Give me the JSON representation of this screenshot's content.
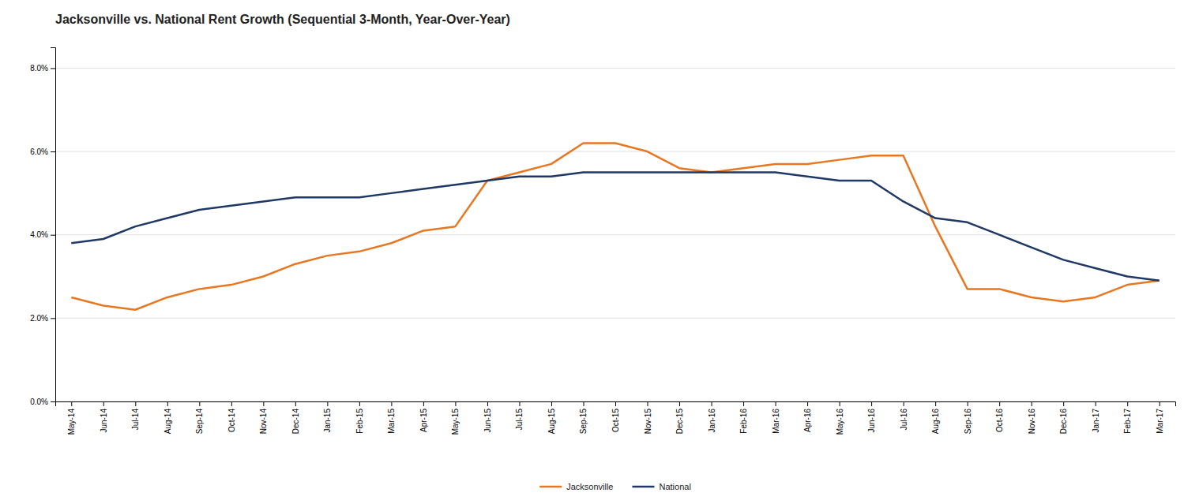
{
  "chart_data": {
    "type": "line",
    "title": "Jacksonville vs. National Rent Growth (Sequential 3-Month, Year-Over-Year)",
    "categories": [
      "May-14",
      "Jun-14",
      "Jul-14",
      "Aug-14",
      "Sep-14",
      "Oct-14",
      "Nov-14",
      "Dec-14",
      "Jan-15",
      "Feb-15",
      "Mar-15",
      "Apr-15",
      "May-15",
      "Jun-15",
      "Jul-15",
      "Aug-15",
      "Sep-15",
      "Oct-15",
      "Nov-15",
      "Dec-15",
      "Jan-16",
      "Feb-16",
      "Mar-16",
      "Apr-16",
      "May-16",
      "Jun-16",
      "Jul-16",
      "Aug-16",
      "Sep-16",
      "Oct-16",
      "Nov-16",
      "Dec-16",
      "Jan-17",
      "Feb-17",
      "Mar-17"
    ],
    "series": [
      {
        "name": "Jacksonville",
        "color": "#E87722",
        "values": [
          0.025,
          0.023,
          0.022,
          0.025,
          0.027,
          0.028,
          0.03,
          0.033,
          0.035,
          0.036,
          0.038,
          0.041,
          0.042,
          0.053,
          0.055,
          0.057,
          0.062,
          0.062,
          0.06,
          0.056,
          0.055,
          0.056,
          0.057,
          0.057,
          0.058,
          0.059,
          0.059,
          0.042,
          0.027,
          0.027,
          0.025,
          0.024,
          0.025,
          0.028,
          0.029
        ]
      },
      {
        "name": "National",
        "color": "#1F3864",
        "values": [
          0.038,
          0.039,
          0.042,
          0.044,
          0.046,
          0.047,
          0.048,
          0.049,
          0.049,
          0.049,
          0.05,
          0.051,
          0.052,
          0.053,
          0.054,
          0.054,
          0.055,
          0.055,
          0.055,
          0.055,
          0.055,
          0.055,
          0.055,
          0.054,
          0.053,
          0.053,
          0.048,
          0.044,
          0.043,
          0.04,
          0.037,
          0.034,
          0.032,
          0.03,
          0.029
        ]
      }
    ],
    "ylim": [
      0.0,
      0.085
    ],
    "yticks": [
      {
        "value": 0.0,
        "label": "0.0%"
      },
      {
        "value": 0.02,
        "label": "2.0%"
      },
      {
        "value": 0.04,
        "label": "4.0%"
      },
      {
        "value": 0.06,
        "label": "6.0%"
      },
      {
        "value": 0.08,
        "label": "8.0%"
      }
    ],
    "grid": true,
    "legend": "bottom"
  }
}
